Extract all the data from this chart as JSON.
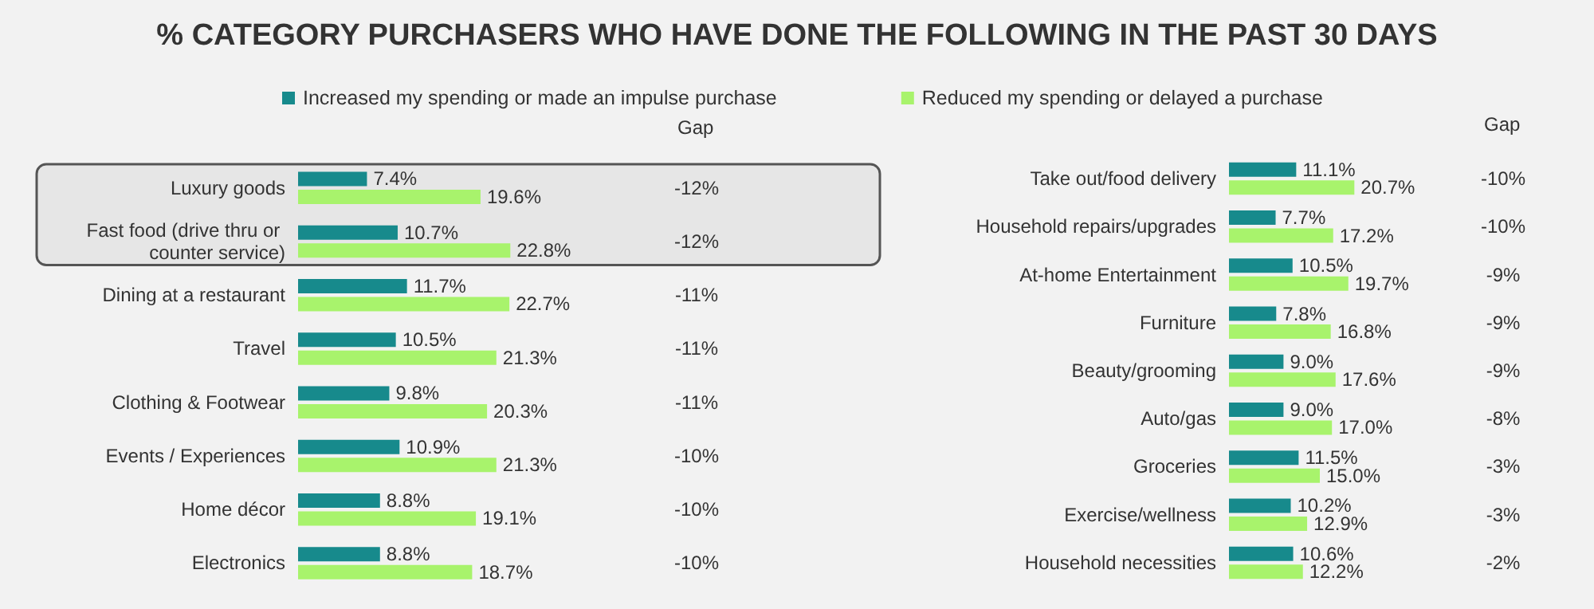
{
  "chart_data": [
    {
      "type": "bar",
      "orientation": "horizontal",
      "title": "% CATEGORY PURCHASERS WHO HAVE DONE THE FOLLOWING IN THE PAST 30 DAYS",
      "legend": "top",
      "categories": [
        "Luxury goods",
        "Fast food (drive thru or counter service)",
        "Dining at a restaurant",
        "Travel",
        "Clothing & Footwear",
        "Events / Experiences",
        "Home décor",
        "Electronics"
      ],
      "series": [
        {
          "name": "Increased my spending or made an impulse purchase",
          "color": "#178a8c",
          "values": [
            7.4,
            10.7,
            11.7,
            10.5,
            9.8,
            10.9,
            8.8,
            8.8
          ],
          "value_labels": [
            "7.4%",
            "10.7%",
            "11.7%",
            "10.5%",
            "9.8%",
            "10.9%",
            "8.8%",
            "8.8%"
          ]
        },
        {
          "name": "Reduced my spending or delayed a purchase",
          "color": "#a8f36c",
          "values": [
            19.6,
            22.8,
            22.7,
            21.3,
            20.3,
            21.3,
            19.1,
            18.7
          ],
          "value_labels": [
            "19.6%",
            "22.8%",
            "22.7%",
            "21.3%",
            "20.3%",
            "21.3%",
            "19.1%",
            "18.7%"
          ]
        }
      ],
      "bands": [
        {
          "axis": "y",
          "from": "Luxury goods",
          "to": "Fast food (drive thru or counter service)",
          "color": "#e6e6e6"
        }
      ],
      "annotations": [
        "Gap",
        "-12%",
        "-12%",
        "-11%",
        "-11%",
        "-11%",
        "-10%",
        "-10%",
        "-10%"
      ]
    },
    {
      "type": "bar",
      "orientation": "horizontal",
      "categories": [
        "Take out/food delivery",
        "Household repairs/upgrades",
        "At-home Entertainment",
        "Furniture",
        "Beauty/grooming",
        "Auto/gas",
        "Groceries",
        "Exercise/wellness",
        "Household necessities"
      ],
      "series": [
        {
          "color": "#178a8c",
          "values": [
            11.1,
            7.7,
            10.5,
            7.8,
            9.0,
            9.0,
            11.5,
            10.2,
            10.6
          ],
          "value_labels": [
            "11.1%",
            "7.7%",
            "10.5%",
            "7.8%",
            "9.0%",
            "9.0%",
            "11.5%",
            "10.2%",
            "10.6%"
          ]
        },
        {
          "color": "#a8f36c",
          "values": [
            20.7,
            17.2,
            19.7,
            16.8,
            17.6,
            17.0,
            15.0,
            12.9,
            12.2
          ],
          "value_labels": [
            "20.7%",
            "17.2%",
            "19.7%",
            "16.8%",
            "17.6%",
            "17.0%",
            "15.0%",
            "12.9%",
            "12.2%"
          ]
        }
      ],
      "annotations": [
        "Gap",
        "-10%",
        "-10%",
        "-9%",
        "-9%",
        "-9%",
        "-8%",
        "-3%",
        "-3%",
        "-2%"
      ]
    }
  ]
}
